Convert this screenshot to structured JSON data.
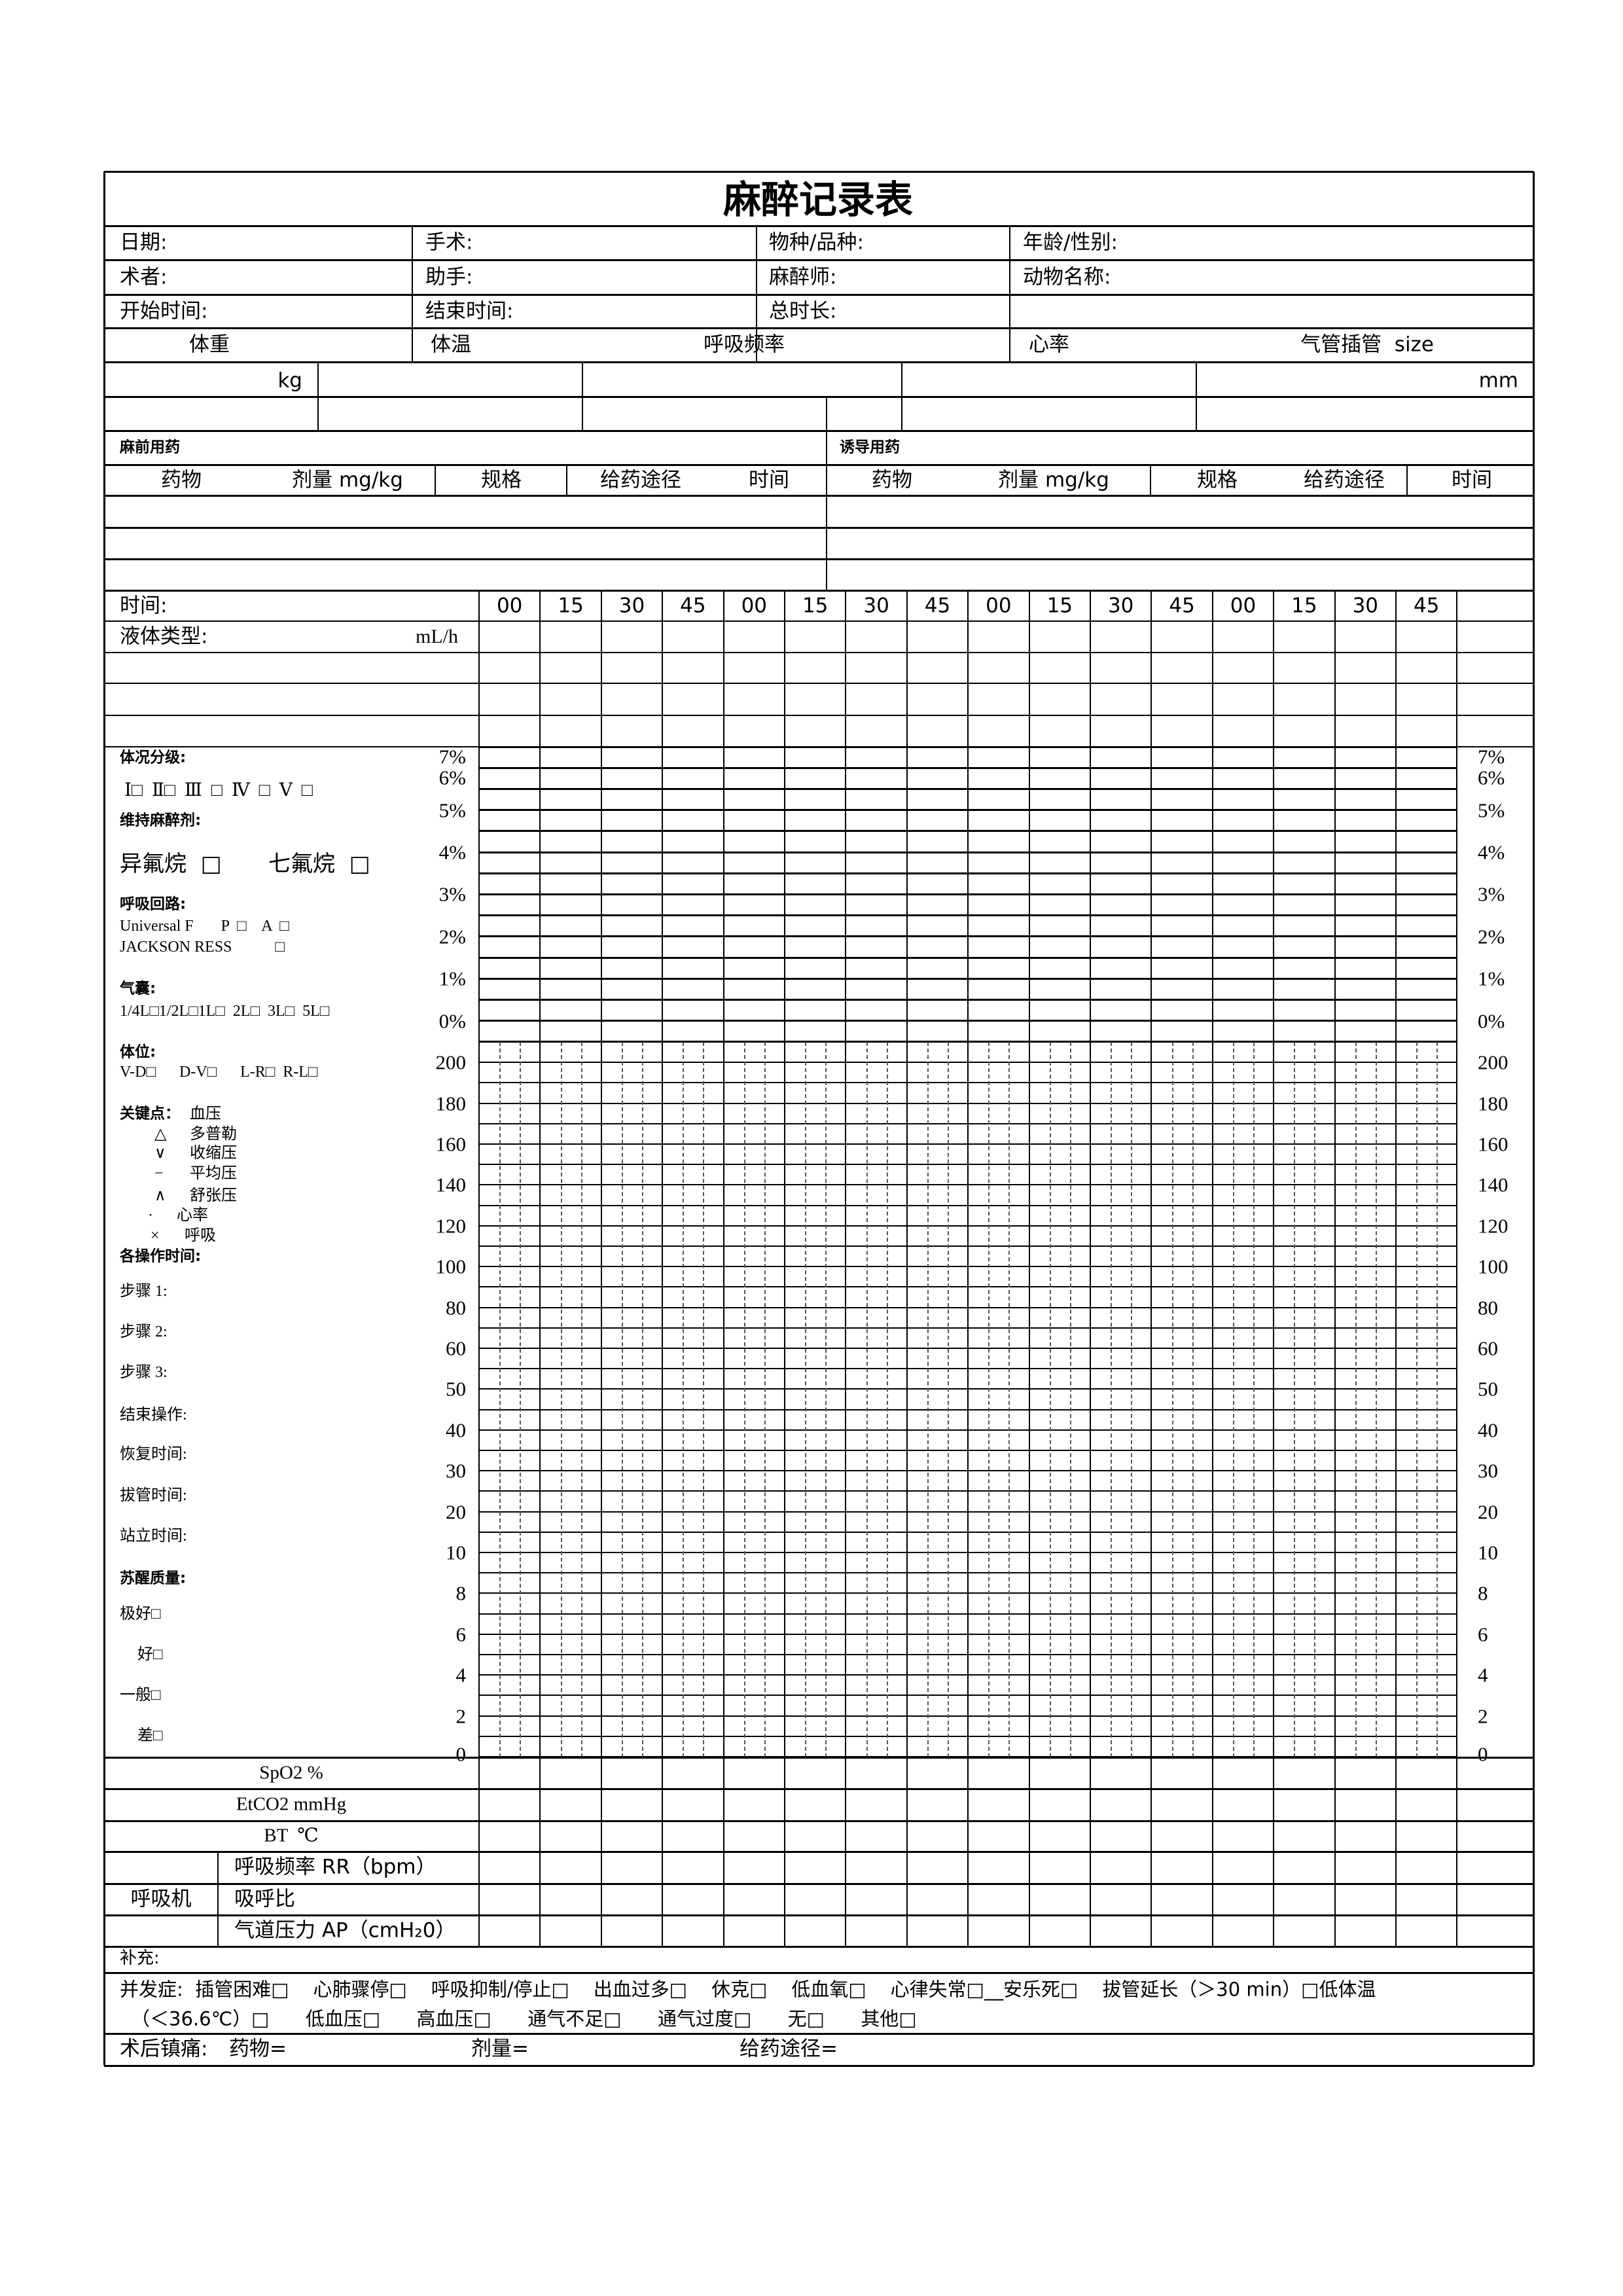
{
  "title": "麻醉记录表",
  "info": {
    "date": "日期:",
    "surgery": "手术:",
    "species": "物种/品种:",
    "age_sex": "年龄/性别:",
    "surgeon": "术者:",
    "assistant": "助手:",
    "anesthetist": "麻醉师:",
    "animal_name": "动物名称:",
    "start_time": "开始时间:",
    "end_time": "结束时间:",
    "duration": "总时长:"
  },
  "vitals": {
    "weight": "体重",
    "temp": "体温",
    "resp_rate": "呼吸频率",
    "heart_rate": "心率",
    "tube": "气管插管  size",
    "kg": "kg",
    "mm": "mm"
  },
  "premed": {
    "title": "麻前用药",
    "cols": [
      "药物",
      "剂量 mg/kg",
      "规格",
      "给药途径",
      "时间"
    ]
  },
  "induction": {
    "title": "诱导用药",
    "cols": [
      "药物",
      "剂量 mg/kg",
      "规格",
      "给药途径",
      "时间"
    ]
  },
  "timeline": {
    "label": "时间:",
    "times": [
      "00",
      "15",
      "30",
      "45",
      "00",
      "15",
      "30",
      "45",
      "00",
      "15",
      "30",
      "45",
      "00",
      "15",
      "30",
      "45"
    ],
    "fluid": "液体类型:",
    "fluid_unit": "mL/h"
  },
  "left_panel": {
    "asa_title": "体况分级:",
    "asa": "Ⅰ□  Ⅱ□  Ⅲ  □  Ⅳ  □  Ⅴ  □",
    "maint_title": "维持麻醉剂:",
    "iso": "异氟烷  □",
    "sevo": "七氟烷  □",
    "circuit_title": "呼吸回路:",
    "circuit_1": "Universal F       P  □    A  □",
    "circuit_2": "JACKSON RESS           □",
    "bag_title": "气囊:",
    "bag": "1/4L□1/2L□1L□  2L□  3L□  5L□",
    "position_title": "体位:",
    "position": "V-D□      D-V□      L-R□  R-L□",
    "key_title": "关键点：",
    "key_bp": "血压",
    "legend": [
      {
        "sym": "△",
        "label": "多普勒"
      },
      {
        "sym": "∨",
        "label": "收缩压"
      },
      {
        "sym": "−",
        "label": "平均压"
      },
      {
        "sym": "∧",
        "label": "舒张压"
      },
      {
        "sym": "·",
        "label": "心率"
      },
      {
        "sym": "×",
        "label": "呼吸"
      }
    ],
    "ops_title": "各操作时间:",
    "ops": [
      "步骤 1:",
      "步骤 2:",
      "步骤 3:",
      "结束操作:",
      "恢复时间:",
      "拔管时间:",
      "站立时间:"
    ],
    "recovery_title": "苏醒质量:",
    "recovery": [
      "极好□",
      "好□",
      "一般□",
      "差□"
    ]
  },
  "pct_labels": [
    "7%",
    "6%",
    "5%",
    "4%",
    "3%",
    "2%",
    "1%",
    "0%"
  ],
  "value_labels": [
    "200",
    "180",
    "160",
    "140",
    "120",
    "100",
    "80",
    "60",
    "50",
    "40",
    "30",
    "20",
    "10",
    "8",
    "6",
    "4",
    "2",
    "0"
  ],
  "monitor_rows": [
    "SpO2 %",
    "EtCO2 mmHg",
    "BT  ℃"
  ],
  "ventilator": {
    "label": "呼吸机",
    "rows": [
      "呼吸频率 RR（bpm）",
      "吸呼比",
      "气道压力 AP（cmH₂0）"
    ]
  },
  "supplement": "补充:",
  "complications": {
    "line1": "并发症:  插管困难□    心肺骤停□    呼吸抑制/停止□    出血过多□    休克□    低血氧□    心律失常□__安乐死□    拔管延长（＞30 min）□低体温",
    "line2": "（＜36.6℃）□      低血压□      高血压□      通气不足□      通气过度□      无□      其他□"
  },
  "postop": {
    "label": "术后镇痛:",
    "drug": "药物=",
    "dose": "剂量=",
    "route": "给药途径="
  }
}
